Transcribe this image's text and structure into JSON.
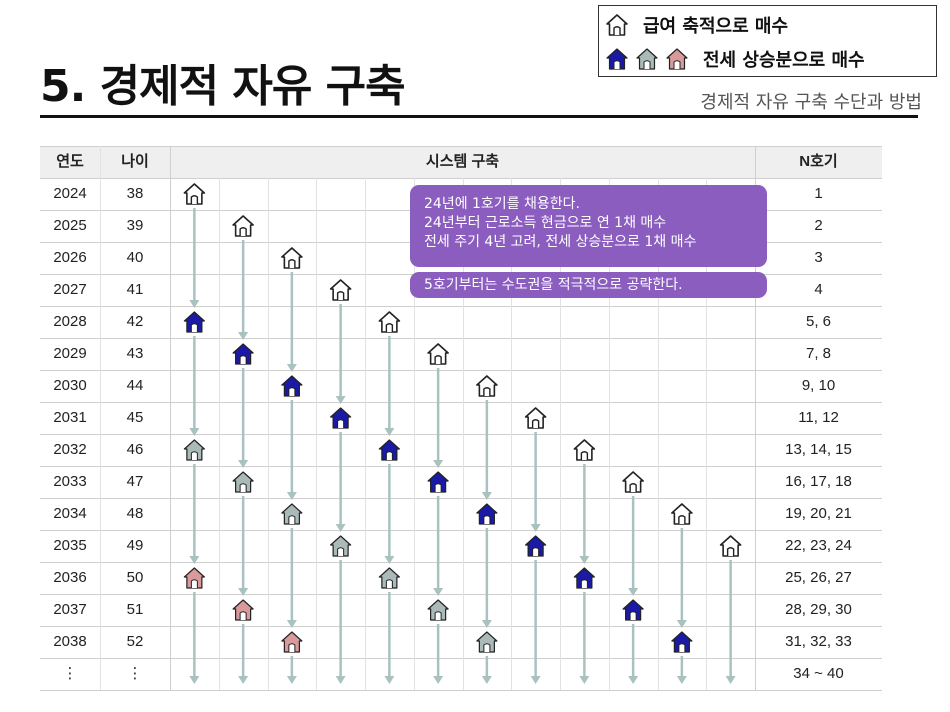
{
  "title": "5. 경제적 자유 구축",
  "subtitle": "경제적 자유 구축 수단과 방법",
  "legend": {
    "salary_label": "급여 축적으로 매수",
    "jeonse_label": "전세 상승분으로 매수"
  },
  "colors": {
    "outline_house": "#ffffff",
    "navy_house": "#1a1aa6",
    "gray_house": "#a9bab8",
    "pink_house": "#d89a9a",
    "arrow": "#a9c2c0",
    "callout_bg": "#8b5dbf",
    "header_bg": "#efefef"
  },
  "table": {
    "headers": {
      "year": "연도",
      "age": "나이",
      "system": "시스템 구축",
      "n": "N호기"
    },
    "rows": [
      {
        "year": "2024",
        "age": "38",
        "n": "1"
      },
      {
        "year": "2025",
        "age": "39",
        "n": "2"
      },
      {
        "year": "2026",
        "age": "40",
        "n": "3"
      },
      {
        "year": "2027",
        "age": "41",
        "n": "4"
      },
      {
        "year": "2028",
        "age": "42",
        "n": "5, 6"
      },
      {
        "year": "2029",
        "age": "43",
        "n": "7, 8"
      },
      {
        "year": "2030",
        "age": "44",
        "n": "9, 10"
      },
      {
        "year": "2031",
        "age": "45",
        "n": "11, 12"
      },
      {
        "year": "2032",
        "age": "46",
        "n": "13, 14, 15"
      },
      {
        "year": "2033",
        "age": "47",
        "n": "16, 17, 18"
      },
      {
        "year": "2034",
        "age": "48",
        "n": "19, 20, 21"
      },
      {
        "year": "2035",
        "age": "49",
        "n": "22, 23, 24"
      },
      {
        "year": "2036",
        "age": "50",
        "n": "25, 26, 27"
      },
      {
        "year": "2037",
        "age": "51",
        "n": "28, 29, 30"
      },
      {
        "year": "2038",
        "age": "52",
        "n": "31, 32, 33"
      },
      {
        "year": "⋮",
        "age": "⋮",
        "n": "34 ~ 40"
      }
    ],
    "system_columns": [
      {
        "houses": [
          {
            "row": 0,
            "type": "outline"
          },
          {
            "row": 4,
            "type": "navy"
          },
          {
            "row": 8,
            "type": "gray"
          },
          {
            "row": 12,
            "type": "pink"
          }
        ]
      },
      {
        "houses": [
          {
            "row": 1,
            "type": "outline"
          },
          {
            "row": 5,
            "type": "navy"
          },
          {
            "row": 9,
            "type": "gray"
          },
          {
            "row": 13,
            "type": "pink"
          }
        ]
      },
      {
        "houses": [
          {
            "row": 2,
            "type": "outline"
          },
          {
            "row": 6,
            "type": "navy"
          },
          {
            "row": 10,
            "type": "gray"
          },
          {
            "row": 14,
            "type": "pink"
          }
        ]
      },
      {
        "houses": [
          {
            "row": 3,
            "type": "outline"
          },
          {
            "row": 7,
            "type": "navy"
          },
          {
            "row": 11,
            "type": "gray"
          }
        ]
      },
      {
        "houses": [
          {
            "row": 4,
            "type": "outline"
          },
          {
            "row": 8,
            "type": "navy"
          },
          {
            "row": 12,
            "type": "gray"
          }
        ]
      },
      {
        "houses": [
          {
            "row": 5,
            "type": "outline"
          },
          {
            "row": 9,
            "type": "navy"
          },
          {
            "row": 13,
            "type": "gray"
          }
        ]
      },
      {
        "houses": [
          {
            "row": 6,
            "type": "outline"
          },
          {
            "row": 10,
            "type": "navy"
          },
          {
            "row": 14,
            "type": "gray"
          }
        ]
      },
      {
        "houses": [
          {
            "row": 7,
            "type": "outline"
          },
          {
            "row": 11,
            "type": "navy"
          }
        ]
      },
      {
        "houses": [
          {
            "row": 8,
            "type": "outline"
          },
          {
            "row": 12,
            "type": "navy"
          }
        ]
      },
      {
        "houses": [
          {
            "row": 9,
            "type": "outline"
          },
          {
            "row": 13,
            "type": "navy"
          }
        ]
      },
      {
        "houses": [
          {
            "row": 10,
            "type": "outline"
          },
          {
            "row": 14,
            "type": "navy"
          }
        ]
      },
      {
        "houses": [
          {
            "row": 11,
            "type": "outline"
          }
        ]
      }
    ]
  },
  "callouts": {
    "main_lines": [
      "24년에 1호기를 채용한다.",
      "24년부터 근로소득 현금으로 연 1채 매수",
      "전세 주기 4년 고려, 전세 상승분으로 1채 매수"
    ],
    "second": "5호기부터는 수도권을 적극적으로 공략한다."
  }
}
